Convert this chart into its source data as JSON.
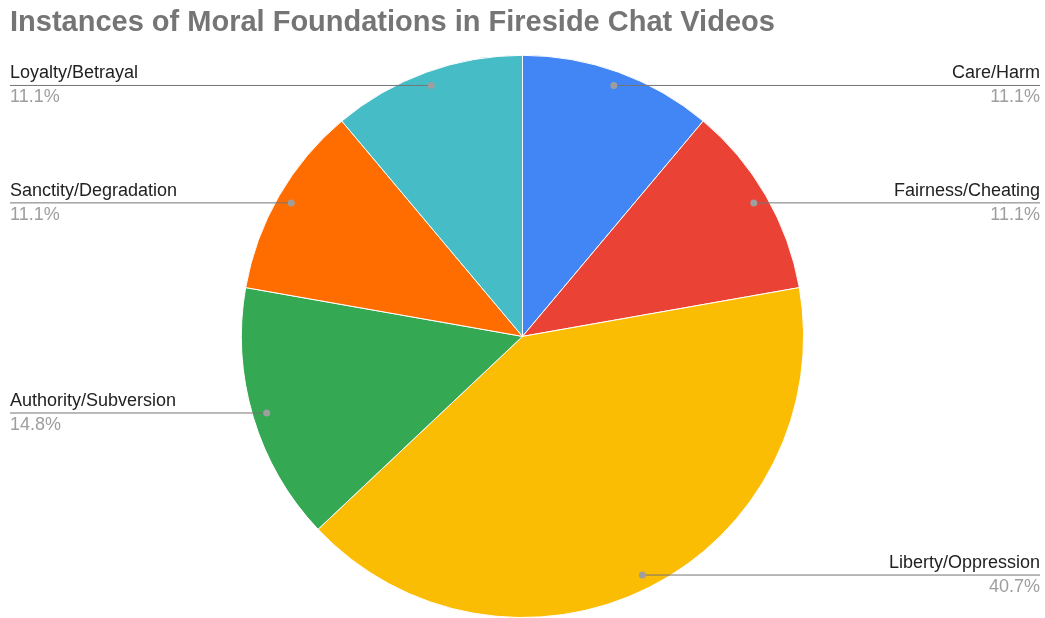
{
  "chart_data": {
    "type": "pie",
    "title": "Instances of Moral Foundations in Fireside Chat Videos",
    "categories": [
      "Care/Harm",
      "Fairness/Cheating",
      "Liberty/Oppression",
      "Authority/Subversion",
      "Sanctity/Degradation",
      "Loyalty/Betrayal"
    ],
    "values": [
      11.1,
      11.1,
      40.7,
      14.8,
      11.1,
      11.1
    ],
    "value_labels": [
      "11.1%",
      "11.1%",
      "40.7%",
      "14.8%",
      "11.1%",
      "11.1%"
    ],
    "colors": [
      "#4285f4",
      "#ea4335",
      "#fbbc04",
      "#34a853",
      "#ff6d01",
      "#46bdc6"
    ],
    "legend": false
  }
}
